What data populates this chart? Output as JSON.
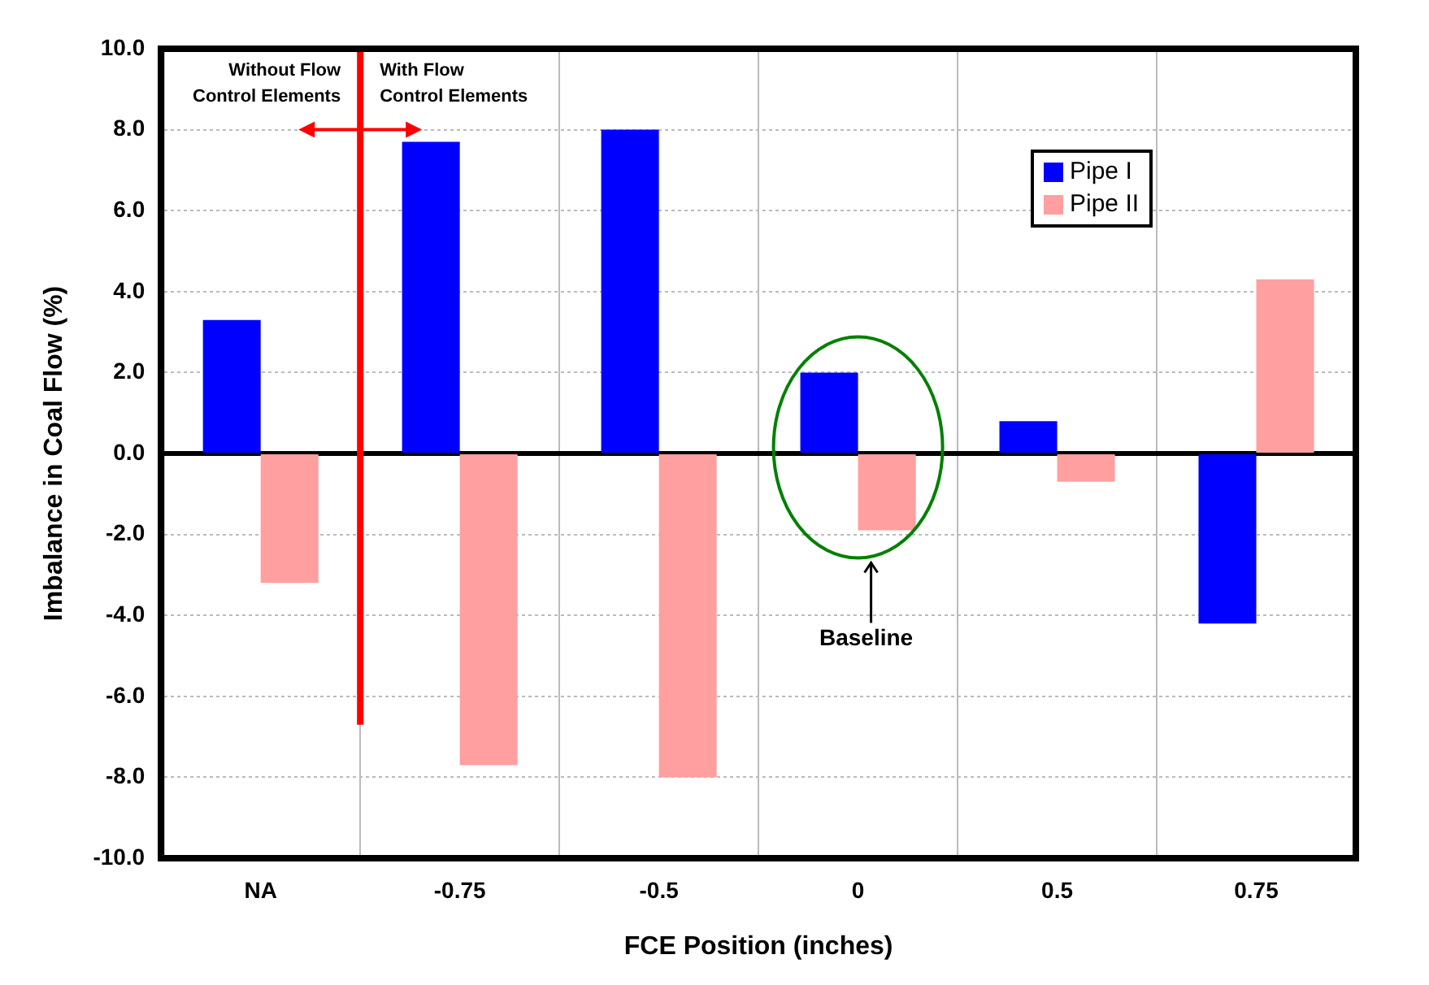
{
  "chart_data": {
    "type": "bar",
    "xlabel": "FCE Position (inches)",
    "ylabel": "Imbalance in Coal Flow (%)",
    "categories": [
      "NA",
      "-0.75",
      "-0.5",
      "0",
      "0.5",
      "0.75"
    ],
    "series": [
      {
        "name": "Pipe I",
        "color": "#0000ff",
        "values": [
          3.3,
          7.7,
          8.0,
          2.0,
          0.8,
          -4.2
        ]
      },
      {
        "name": "Pipe II",
        "color": "#ff9f9f",
        "values": [
          -3.2,
          -7.7,
          -8.0,
          -1.9,
          -0.7,
          4.3
        ]
      }
    ],
    "ylim": [
      -10,
      10
    ],
    "yticks": [
      {
        "value": -10,
        "label": "-10.0"
      },
      {
        "value": -8,
        "label": "-8.0"
      },
      {
        "value": -6,
        "label": "-6.0"
      },
      {
        "value": -4,
        "label": "-4.0"
      },
      {
        "value": -2,
        "label": "-2.0"
      },
      {
        "value": 0,
        "label": "0.0"
      },
      {
        "value": 2,
        "label": "2.0"
      },
      {
        "value": 4,
        "label": "4.0"
      },
      {
        "value": 6,
        "label": "6.0"
      },
      {
        "value": 8,
        "label": "8.0"
      },
      {
        "value": 10,
        "label": "10.0"
      }
    ],
    "grid": true,
    "legend": "top right",
    "ref_lines": [
      {
        "axis": "y",
        "value": 0,
        "color": "#000000"
      }
    ],
    "annotations": [
      "Without Flow Control Elements",
      "With Flow Control Elements",
      "Baseline"
    ]
  }
}
